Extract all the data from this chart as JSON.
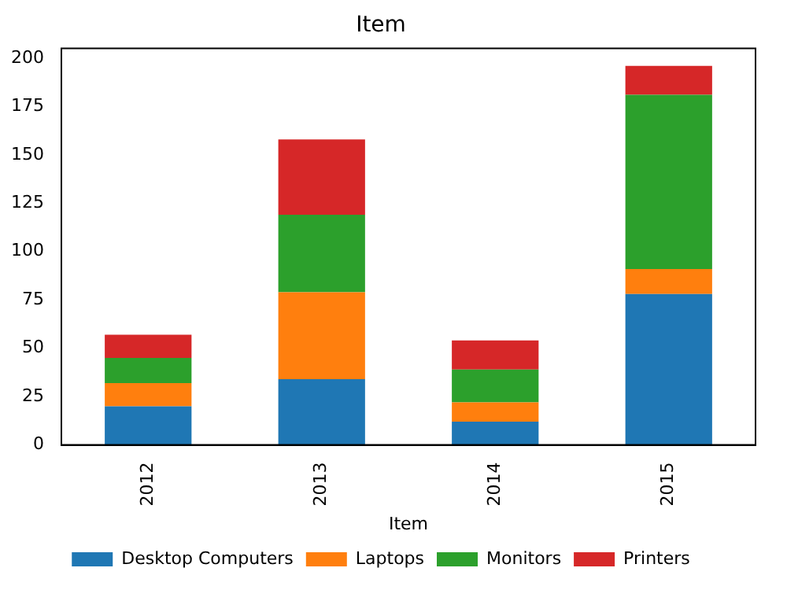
{
  "chart_data": {
    "type": "bar",
    "title": "Item",
    "xlabel": "Item",
    "stacked": true,
    "categories": [
      "2012",
      "2013",
      "2014",
      "2015"
    ],
    "series": [
      {
        "name": "Desktop Computers",
        "color": "#1f77b4",
        "values": [
          20,
          34,
          12,
          78
        ]
      },
      {
        "name": "Laptops",
        "color": "#ff7f0e",
        "values": [
          12,
          45,
          10,
          13
        ]
      },
      {
        "name": "Monitors",
        "color": "#2ca02c",
        "values": [
          13,
          40,
          17,
          90
        ]
      },
      {
        "name": "Printers",
        "color": "#d62728",
        "values": [
          12,
          39,
          15,
          15
        ]
      }
    ],
    "ylim": [
      0,
      205
    ],
    "yticks": [
      0,
      25,
      50,
      75,
      100,
      125,
      150,
      175,
      200
    ],
    "grid": false,
    "legend": "bottom"
  }
}
